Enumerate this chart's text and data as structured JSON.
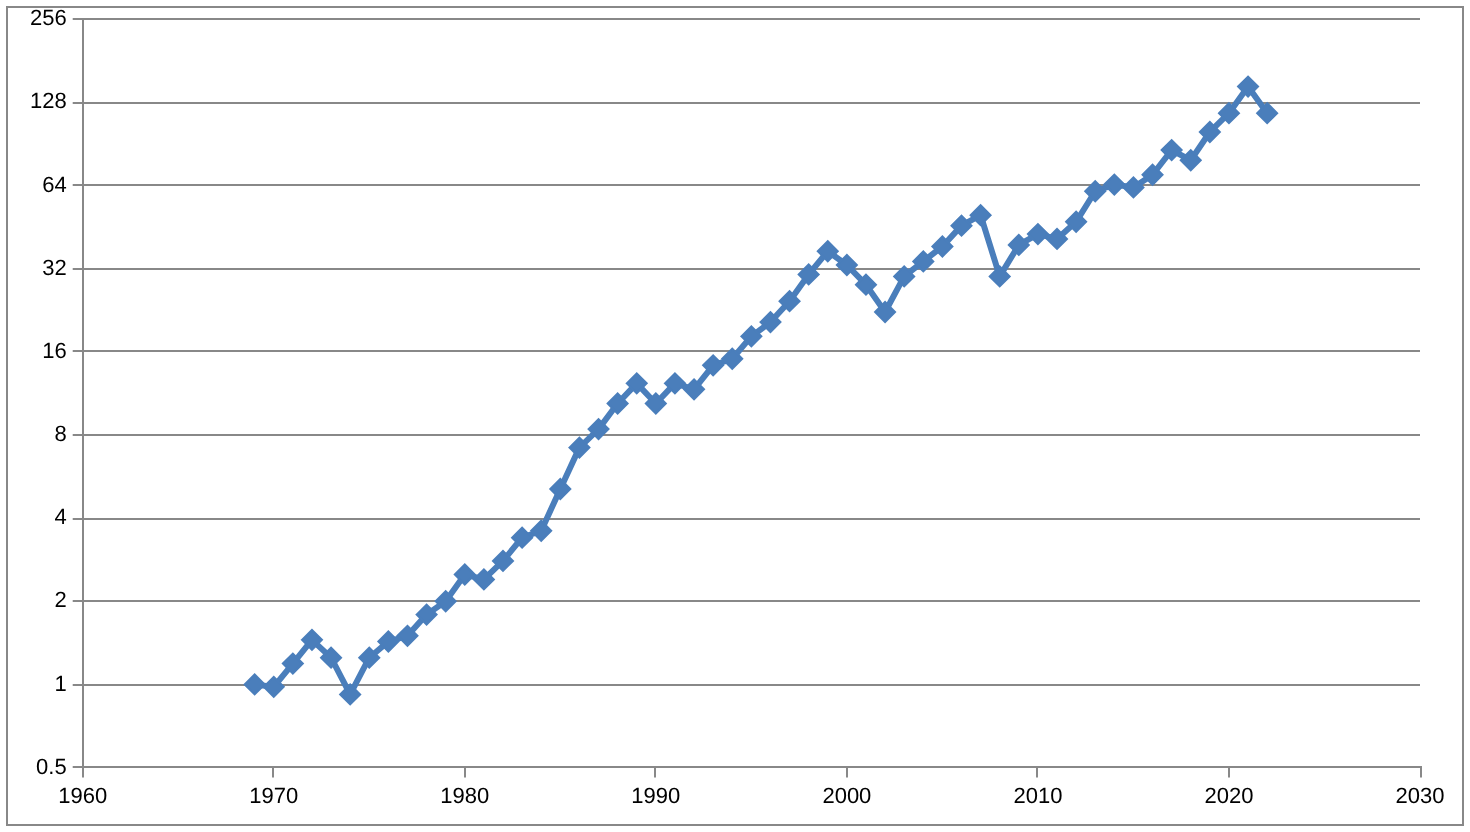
{
  "chart_data": {
    "type": "line",
    "x": [
      1969,
      1970,
      1971,
      1972,
      1973,
      1974,
      1975,
      1976,
      1977,
      1978,
      1979,
      1980,
      1981,
      1982,
      1983,
      1984,
      1985,
      1986,
      1987,
      1988,
      1989,
      1990,
      1991,
      1992,
      1993,
      1994,
      1995,
      1996,
      1997,
      1998,
      1999,
      2000,
      2001,
      2002,
      2003,
      2004,
      2005,
      2006,
      2007,
      2008,
      2009,
      2010,
      2011,
      2012,
      2013,
      2014,
      2015,
      2016,
      2017,
      2018,
      2019,
      2020,
      2021,
      2022
    ],
    "series": [
      {
        "color": "#4a7ebb",
        "values": [
          1.0,
          0.98,
          1.19,
          1.45,
          1.25,
          0.92,
          1.25,
          1.43,
          1.5,
          1.79,
          2.0,
          2.5,
          2.4,
          2.8,
          3.4,
          3.6,
          5.1,
          7.2,
          8.4,
          10.4,
          12.3,
          10.4,
          12.3,
          11.7,
          14.3,
          15.1,
          18.2,
          20.5,
          24.4,
          30.5,
          37,
          33,
          28,
          22.3,
          30,
          34,
          38.5,
          45.8,
          50,
          30,
          39,
          42.7,
          41,
          47.3,
          61,
          64.5,
          63,
          70,
          86,
          79,
          100,
          117,
          146,
          117
        ]
      }
    ],
    "xlim": [
      1960,
      2030
    ],
    "xticks": [
      1960,
      1970,
      1980,
      1990,
      2000,
      2010,
      2020,
      2030
    ],
    "ylim": [
      0.5,
      256
    ],
    "yticks": [
      0.5,
      1,
      2,
      4,
      8,
      16,
      32,
      64,
      128,
      256
    ],
    "log": "y",
    "grid": "y",
    "legend": false,
    "marker": "diamond",
    "line_style": "solid"
  }
}
